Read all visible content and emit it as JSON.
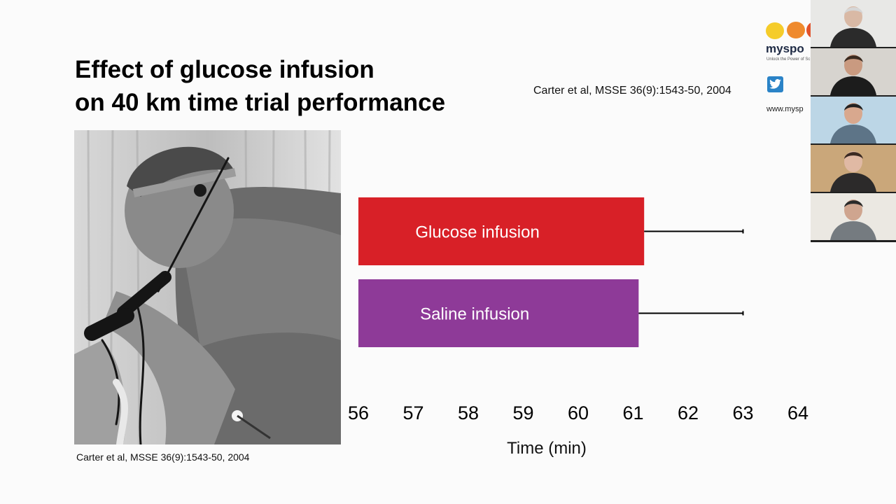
{
  "slide": {
    "title_lines": [
      "Effect of glucose infusion",
      "on 40 km time trial performance"
    ],
    "citation_top": "Carter et al, MSSE 36(9):1543-50, 2004",
    "citation_bottom": "Carter et al, MSSE 36(9):1543-50, 2004",
    "photo_name": "cyclist-breathing-apparatus-photo"
  },
  "chart_data": {
    "type": "bar",
    "orientation": "horizontal",
    "categories": [
      "Glucose infusion",
      "Saline infusion"
    ],
    "values": [
      61.2,
      61.1
    ],
    "error_upper": [
      63.0,
      63.0
    ],
    "colors": [
      "#d82027",
      "#8e3a98"
    ],
    "xlabel": "Time (min)",
    "xlim": [
      56,
      64
    ],
    "xticks": [
      "56",
      "57",
      "58",
      "59",
      "60",
      "61",
      "62",
      "63",
      "64"
    ],
    "grid": false,
    "legend": "none"
  },
  "branding": {
    "logo_text": "myspo",
    "tagline": "Unlock the Power of Sc",
    "url": "www.mysp",
    "twitter_icon": "twitter-icon",
    "logo_colors": [
      "#f5cc2a",
      "#ef8a2d",
      "#e2522b"
    ]
  },
  "participants": [
    {
      "name": "participant-1",
      "shirt": "#2b2b2b",
      "wall": "#e8e8e6",
      "skin": "#d9b9a5",
      "hair": "#d6d6d6"
    },
    {
      "name": "participant-2",
      "shirt": "#1c1c1c",
      "wall": "#d7d4cf",
      "skin": "#c99a80",
      "hair": "#3a2a20"
    },
    {
      "name": "participant-3",
      "shirt": "#5d7487",
      "wall": "#bcd6e6",
      "skin": "#d8a88e",
      "hair": "#222222"
    },
    {
      "name": "participant-4",
      "shirt": "#2c2a2a",
      "wall": "#caa77a",
      "skin": "#e0b9a4",
      "hair": "#3b2a22"
    },
    {
      "name": "participant-5",
      "shirt": "#757b80",
      "wall": "#ebe8e2",
      "skin": "#cfa58f",
      "hair": "#2a2a2a"
    }
  ]
}
